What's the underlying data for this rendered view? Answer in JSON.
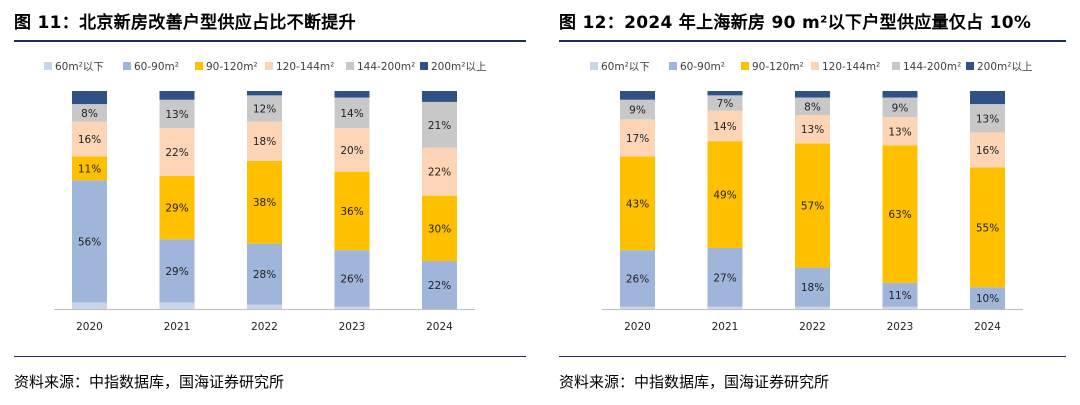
{
  "panels": [
    {
      "title": "图 11：北京新房改善户型供应占比不断提升",
      "source": "资料来源：中指数据库，国海证券研究所",
      "legend": [
        {
          "name": "60m²以下",
          "color": "#c9d5ea"
        },
        {
          "name": "60-90m²",
          "color": "#9fb5da"
        },
        {
          "name": "90-120m²",
          "color": "#ffc000"
        },
        {
          "name": "120-144m²",
          "color": "#fbd5b5"
        },
        {
          "name": "144-200m²",
          "color": "#c8c8c8"
        },
        {
          "name": "200m²以上",
          "color": "#2e5186"
        }
      ]
    },
    {
      "title": "图 12：2024 年上海新房 90 m²以下户型供应量仅占 10%",
      "source": "资料来源：中指数据库，国海证券研究所",
      "legend": [
        {
          "name": "60m²以下",
          "color": "#c9d5ea"
        },
        {
          "name": "60-90m²",
          "color": "#9fb5da"
        },
        {
          "name": "90-120m²",
          "color": "#ffc000"
        },
        {
          "name": "120-144m²",
          "color": "#fbd5b5"
        },
        {
          "name": "144-200m²",
          "color": "#c8c8c8"
        },
        {
          "name": "200m²以上",
          "color": "#2e5186"
        }
      ]
    }
  ],
  "chart_data": [
    {
      "type": "bar",
      "stacked": true,
      "title": "图 11：北京新房改善户型供应占比不断提升",
      "categories": [
        "2020",
        "2021",
        "2022",
        "2023",
        "2024"
      ],
      "ylim": [
        0,
        100
      ],
      "legend_position": "top",
      "grid": false,
      "series": [
        {
          "name": "60m²以下",
          "color": "#c9d5ea",
          "values": [
            3,
            3,
            2,
            1,
            0
          ],
          "labels": [
            "",
            "",
            "",
            "",
            ""
          ]
        },
        {
          "name": "60-90m²",
          "color": "#9fb5da",
          "values": [
            56,
            29,
            28,
            26,
            22
          ],
          "labels": [
            "56%",
            "29%",
            "28%",
            "26%",
            "22%"
          ]
        },
        {
          "name": "90-120m²",
          "color": "#ffc000",
          "values": [
            11,
            29,
            38,
            36,
            30
          ],
          "labels": [
            "11%",
            "29%",
            "38%",
            "36%",
            "30%"
          ]
        },
        {
          "name": "120-144m²",
          "color": "#fbd5b5",
          "values": [
            16,
            22,
            18,
            20,
            22
          ],
          "labels": [
            "16%",
            "22%",
            "18%",
            "20%",
            "22%"
          ]
        },
        {
          "name": "144-200m²",
          "color": "#c8c8c8",
          "values": [
            8,
            13,
            12,
            14,
            21
          ],
          "labels": [
            "8%",
            "13%",
            "12%",
            "14%",
            "21%"
          ]
        },
        {
          "name": "200m²以上",
          "color": "#2e5186",
          "values": [
            6,
            4,
            2,
            3,
            5
          ],
          "labels": [
            "",
            "",
            "",
            "",
            ""
          ]
        }
      ]
    },
    {
      "type": "bar",
      "stacked": true,
      "title": "图 12：2024 年上海新房 90 m²以下户型供应量仅占 10%",
      "categories": [
        "2020",
        "2021",
        "2022",
        "2023",
        "2024"
      ],
      "ylim": [
        0,
        100
      ],
      "legend_position": "top",
      "grid": false,
      "series": [
        {
          "name": "60m²以下",
          "color": "#c9d5ea",
          "values": [
            1,
            1,
            1,
            1,
            0
          ],
          "labels": [
            "",
            "",
            "",
            "",
            ""
          ]
        },
        {
          "name": "60-90m²",
          "color": "#9fb5da",
          "values": [
            26,
            27,
            18,
            11,
            10
          ],
          "labels": [
            "26%",
            "27%",
            "18%",
            "11%",
            "10%"
          ]
        },
        {
          "name": "90-120m²",
          "color": "#ffc000",
          "values": [
            43,
            49,
            57,
            63,
            55
          ],
          "labels": [
            "43%",
            "49%",
            "57%",
            "63%",
            "55%"
          ]
        },
        {
          "name": "120-144m²",
          "color": "#fbd5b5",
          "values": [
            17,
            14,
            13,
            13,
            16
          ],
          "labels": [
            "17%",
            "14%",
            "13%",
            "13%",
            "16%"
          ]
        },
        {
          "name": "144-200m²",
          "color": "#c8c8c8",
          "values": [
            9,
            7,
            8,
            9,
            13
          ],
          "labels": [
            "9%",
            "7%",
            "8%",
            "9%",
            "13%"
          ]
        },
        {
          "name": "200m²以上",
          "color": "#2e5186",
          "values": [
            4,
            2,
            3,
            3,
            6
          ],
          "labels": [
            "",
            "",
            "",
            "",
            ""
          ]
        }
      ]
    }
  ]
}
